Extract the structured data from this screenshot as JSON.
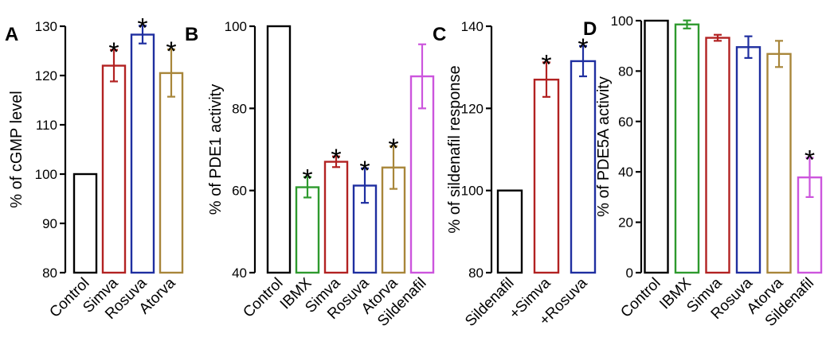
{
  "chart_data": [
    {
      "type": "bar",
      "panel": "A",
      "ylabel": "% of cGMP level",
      "ylim": [
        80,
        130
      ],
      "yticks": [
        80,
        90,
        100,
        110,
        120,
        130
      ],
      "categories": [
        "Control",
        "Simva",
        "Rosuva",
        "Atorva"
      ],
      "values": [
        100,
        122,
        128.3,
        120.5
      ],
      "errors": [
        0,
        3.2,
        1.8,
        4.8
      ],
      "significant": [
        false,
        true,
        true,
        true
      ],
      "colors": [
        "#000000",
        "#b22222",
        "#1f2fa0",
        "#a8863a"
      ]
    },
    {
      "type": "bar",
      "panel": "B",
      "ylabel": "% of PDE1 activity",
      "ylim": [
        40,
        100
      ],
      "yticks": [
        40,
        60,
        80,
        100
      ],
      "categories": [
        "Control",
        "IBMX",
        "Simva",
        "Rosuva",
        "Atorva",
        "Sildenafil"
      ],
      "values": [
        100,
        60.8,
        67,
        61.2,
        65.6,
        87.8
      ],
      "errors": [
        0,
        2.5,
        1.3,
        4.2,
        5.2,
        7.8
      ],
      "significant": [
        false,
        true,
        true,
        true,
        true,
        false
      ],
      "colors": [
        "#000000",
        "#2e9a2e",
        "#b22222",
        "#1f2fa0",
        "#a8863a",
        "#cc55dd"
      ]
    },
    {
      "type": "bar",
      "panel": "C",
      "ylabel": "% of sildenafil response",
      "ylim": [
        80,
        140
      ],
      "yticks": [
        80,
        100,
        120,
        140
      ],
      "categories": [
        "Sildenafil",
        "+Simva",
        "+Rosuva"
      ],
      "values": [
        100,
        127,
        131.5
      ],
      "errors": [
        0,
        4.2,
        3.7
      ],
      "significant": [
        false,
        true,
        true
      ],
      "colors": [
        "#000000",
        "#b22222",
        "#1f2fa0"
      ]
    },
    {
      "type": "bar",
      "panel": "D",
      "ylabel": "% of PDE5A activity",
      "ylim": [
        0,
        100
      ],
      "yticks": [
        0,
        20,
        40,
        60,
        80,
        100
      ],
      "categories": [
        "Control",
        "IBMX",
        "Simva",
        "Rosuva",
        "Atorva",
        "Sildenafil"
      ],
      "values": [
        100,
        98.5,
        93.2,
        89.5,
        86.8,
        37.8
      ],
      "errors": [
        0,
        1.6,
        1.2,
        4.3,
        5.2,
        7.8
      ],
      "significant": [
        false,
        false,
        false,
        false,
        false,
        true
      ],
      "colors": [
        "#000000",
        "#2e9a2e",
        "#b22222",
        "#1f2fa0",
        "#a8863a",
        "#cc55dd"
      ]
    }
  ]
}
